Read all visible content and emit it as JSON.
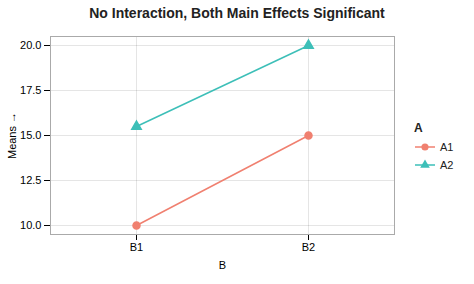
{
  "chart_data": {
    "type": "line",
    "title": "No Interaction, Both Main Effects Significant",
    "xlabel": "B",
    "ylabel": "Means",
    "categories": [
      "B1",
      "B2"
    ],
    "series": [
      {
        "name": "A1",
        "color": "#F08070",
        "marker": "circle",
        "values": [
          10,
          15
        ]
      },
      {
        "name": "A2",
        "color": "#3DBFB8",
        "marker": "triangle",
        "values": [
          15.5,
          20
        ]
      }
    ],
    "ylim": [
      9.5,
      20.5
    ],
    "yticks": [
      {
        "value": 10,
        "label": "10.0"
      },
      12.5,
      {
        "value": 15,
        "label": "15.0"
      },
      17.5,
      {
        "value": 20,
        "label": "20.0"
      }
    ],
    "grid": true,
    "legend": "right",
    "legend_title": "A"
  }
}
